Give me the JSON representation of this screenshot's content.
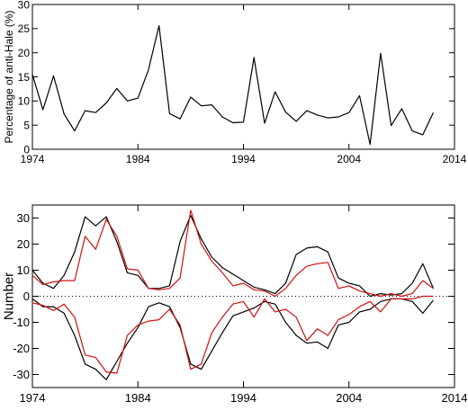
{
  "colors": {
    "black": "#000000",
    "red": "#d01010",
    "axis": "#000000"
  },
  "chart_data": [
    {
      "type": "line",
      "title": "",
      "xlabel": "",
      "ylabel": "Percentage of anti-Hale (%)",
      "xlim": [
        1974,
        2014
      ],
      "ylim": [
        0,
        30
      ],
      "xticks": [
        1974,
        1984,
        1994,
        2004,
        2014
      ],
      "yticks": [
        0,
        5,
        10,
        15,
        20,
        25,
        30
      ],
      "grid": false,
      "series": [
        {
          "color": "black",
          "x": [
            1974,
            1975,
            1976,
            1977,
            1978,
            1979,
            1980,
            1981,
            1982,
            1983,
            1984,
            1985,
            1986,
            1987,
            1988,
            1989,
            1990,
            1991,
            1992,
            1993,
            1994,
            1995,
            1996,
            1997,
            1998,
            1999,
            2000,
            2001,
            2002,
            2003,
            2004,
            2005,
            2006,
            2007,
            2008,
            2009,
            2010,
            2011,
            2012
          ],
          "values": [
            15.5,
            8.2,
            15.2,
            7.3,
            3.8,
            8.0,
            7.6,
            9.6,
            12.6,
            10.0,
            10.6,
            16.5,
            25.6,
            7.4,
            6.3,
            10.8,
            9.0,
            9.2,
            6.7,
            5.5,
            5.6,
            19.0,
            5.4,
            11.9,
            7.7,
            5.8,
            8.0,
            7.1,
            6.5,
            6.7,
            7.6,
            11.1,
            1.0,
            19.9,
            4.9,
            8.4,
            3.8,
            3.0,
            7.6
          ]
        }
      ]
    },
    {
      "type": "line",
      "title": "",
      "xlabel": "",
      "ylabel": "Number",
      "xlim": [
        1974,
        2014
      ],
      "ylim": [
        -35,
        35
      ],
      "xticks": [
        1974,
        1984,
        1994,
        2004,
        2014
      ],
      "yticks": [
        -30,
        -20,
        -10,
        0,
        10,
        20,
        30
      ],
      "grid": false,
      "series": [
        {
          "color": "black",
          "x": [
            1974,
            1975,
            1976,
            1977,
            1978,
            1979,
            1980,
            1981,
            1982,
            1983,
            1984,
            1985,
            1986,
            1987,
            1988,
            1989,
            1990,
            1991,
            1992,
            1993,
            1994,
            1995,
            1996,
            1997,
            1998,
            1999,
            2000,
            2001,
            2002,
            2003,
            2004,
            2005,
            2006,
            2007,
            2008,
            2009,
            2010,
            2011,
            2012
          ],
          "values": [
            10,
            5,
            3,
            8,
            17,
            30.5,
            27,
            30.5,
            21,
            9,
            8,
            3,
            3,
            4,
            21,
            31,
            22,
            15,
            11,
            8.5,
            6,
            3.5,
            2.5,
            1,
            5,
            16,
            18.5,
            19,
            17,
            7,
            5,
            4,
            0,
            1,
            0.5,
            1,
            5,
            12.5,
            3
          ]
        },
        {
          "color": "black",
          "x": [
            1974,
            1975,
            1976,
            1977,
            1978,
            1979,
            1980,
            1981,
            1982,
            1983,
            1984,
            1985,
            1986,
            1987,
            1988,
            1989,
            1990,
            1991,
            1992,
            1993,
            1994,
            1995,
            1996,
            1997,
            1998,
            1999,
            2000,
            2001,
            2002,
            2003,
            2004,
            2005,
            2006,
            2007,
            2008,
            2009,
            2010,
            2011,
            2012
          ],
          "values": [
            -1,
            -4,
            -4,
            -6.5,
            -15,
            -26,
            -28,
            -32,
            -25,
            -18,
            -12,
            -4,
            -2.5,
            -4,
            -12,
            -26,
            -28,
            -21,
            -14,
            -7.5,
            -6,
            -4.5,
            -2,
            -3,
            -10,
            -15,
            -18,
            -17.5,
            -20,
            -11,
            -10,
            -6,
            -5,
            -2,
            -1,
            -1,
            -2,
            -6.5,
            -1.5
          ]
        },
        {
          "color": "red",
          "x": [
            1974,
            1975,
            1976,
            1977,
            1978,
            1979,
            1980,
            1981,
            1982,
            1983,
            1984,
            1985,
            1986,
            1987,
            1988,
            1989,
            1990,
            1991,
            1992,
            1993,
            1994,
            1995,
            1996,
            1997,
            1998,
            1999,
            2000,
            2001,
            2002,
            2003,
            2004,
            2005,
            2006,
            2007,
            2008,
            2009,
            2010,
            2011,
            2012
          ],
          "values": [
            8,
            4.5,
            5.5,
            6,
            6,
            23,
            18,
            29.5,
            23,
            10.5,
            10,
            3,
            2.5,
            3,
            7,
            33,
            20,
            13.5,
            9,
            4,
            5,
            2.5,
            2,
            0,
            3,
            8,
            11.5,
            12.5,
            13,
            3,
            4,
            2,
            1,
            0,
            1,
            0,
            1,
            6,
            3
          ]
        },
        {
          "color": "red",
          "x": [
            1974,
            1975,
            1976,
            1977,
            1978,
            1979,
            1980,
            1981,
            1982,
            1983,
            1984,
            1985,
            1986,
            1987,
            1988,
            1989,
            1990,
            1991,
            1992,
            1993,
            1994,
            1995,
            1996,
            1997,
            1998,
            1999,
            2000,
            2001,
            2002,
            2003,
            2004,
            2005,
            2006,
            2007,
            2008,
            2009,
            2010,
            2011,
            2012
          ],
          "values": [
            -2.5,
            -3.5,
            -5.5,
            -3,
            -8,
            -22.5,
            -23.5,
            -29,
            -29.5,
            -15,
            -11,
            -9.5,
            -9,
            -5,
            -11,
            -28,
            -26,
            -14,
            -8,
            -3,
            -2,
            -8,
            -1,
            -6,
            -5,
            -8,
            -17,
            -12.5,
            -15,
            -9,
            -7,
            -4,
            -2,
            -6,
            -1,
            -1,
            -1,
            0,
            0
          ]
        }
      ]
    }
  ]
}
